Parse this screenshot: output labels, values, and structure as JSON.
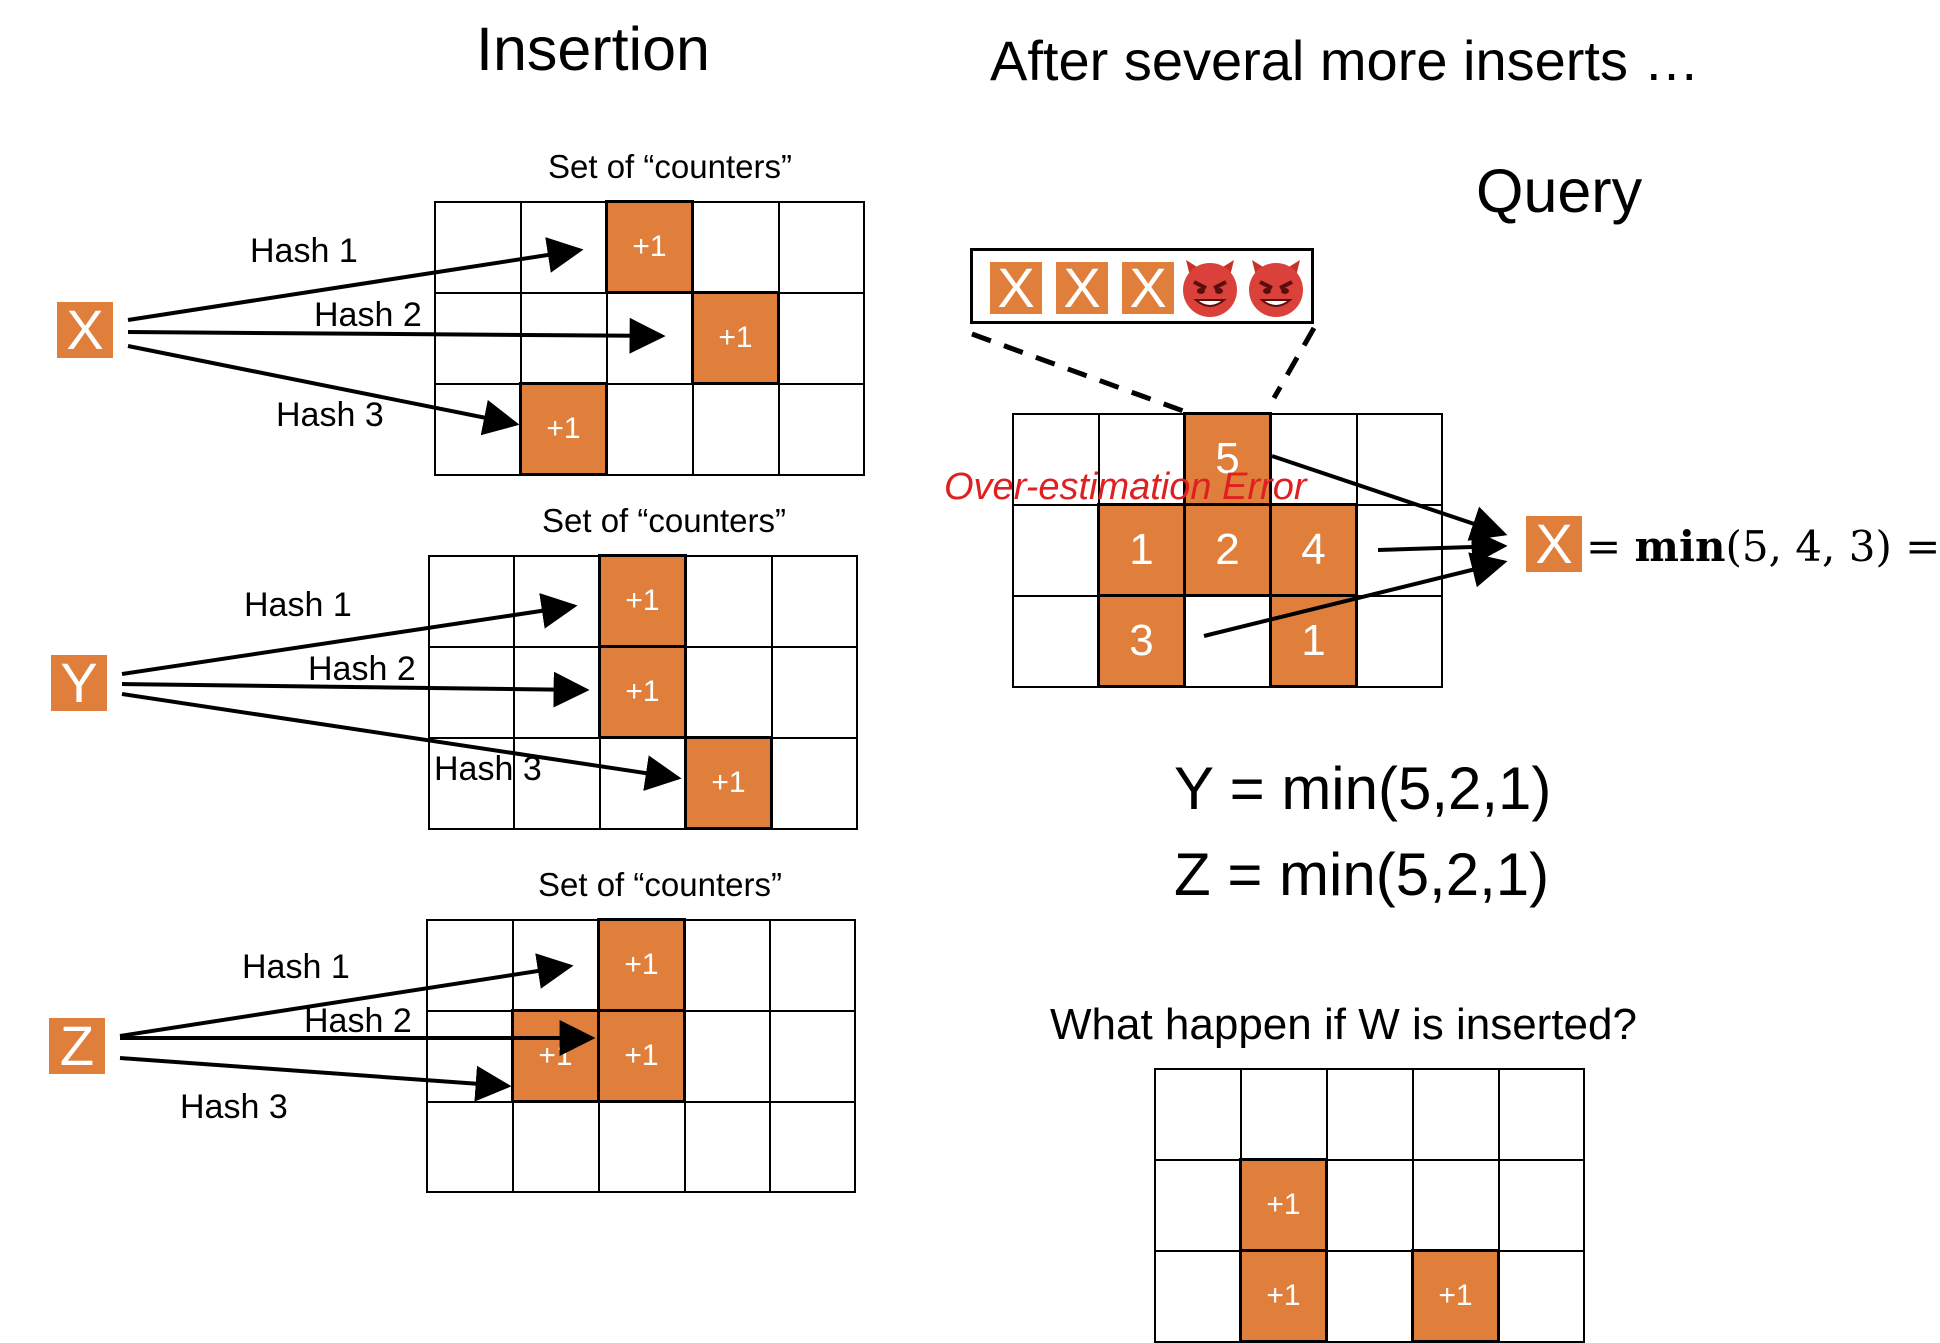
{
  "titles": {
    "insertion": "Insertion",
    "after": "After several more inserts …",
    "query": "Query",
    "question": "What happen if W is inserted?"
  },
  "counters_label": "Set of “counters”",
  "hashes": [
    "Hash 1",
    "Hash 2",
    "Hash 3"
  ],
  "insert_x": {
    "letter": "X",
    "cells": [
      [
        "",
        "",
        "+1",
        "",
        ""
      ],
      [
        "",
        "",
        "",
        "+1",
        ""
      ],
      [
        "",
        "+1",
        "",
        "",
        ""
      ]
    ]
  },
  "insert_y": {
    "letter": "Y",
    "cells": [
      [
        "",
        "",
        "+1",
        "",
        ""
      ],
      [
        "",
        "",
        "+1",
        "",
        ""
      ],
      [
        "",
        "",
        "",
        "+1",
        ""
      ]
    ]
  },
  "insert_z": {
    "letter": "Z",
    "cells": [
      [
        "",
        "",
        "+1",
        "",
        ""
      ],
      [
        "",
        "+1",
        "+1",
        "",
        ""
      ],
      [
        "",
        "",
        "",
        "",
        ""
      ]
    ]
  },
  "stream": {
    "items": [
      "X",
      "X",
      "X"
    ],
    "icons": [
      "devil-icon",
      "devil-icon"
    ]
  },
  "query_grid": {
    "cells": [
      [
        "",
        "",
        "5",
        "",
        ""
      ],
      [
        "",
        "1",
        "2",
        "4",
        ""
      ],
      [
        "",
        "3",
        "",
        "1",
        ""
      ]
    ]
  },
  "error_label": "Over-estimation Error",
  "query_x": {
    "letter": "X",
    "equals": "= ",
    "fn": "min",
    "args": "(5, 4, 3) ="
  },
  "formulas": {
    "y": "Y = min(5,2,1)",
    "z": "Z = min(5,2,1)"
  },
  "w_grid": {
    "cells": [
      [
        "",
        "",
        "",
        "",
        ""
      ],
      [
        "",
        "+1",
        "",
        "",
        ""
      ],
      [
        "",
        "+1",
        "",
        "+1",
        ""
      ]
    ]
  },
  "colors": {
    "accent": "#E07F3B",
    "error": "#E02020"
  }
}
